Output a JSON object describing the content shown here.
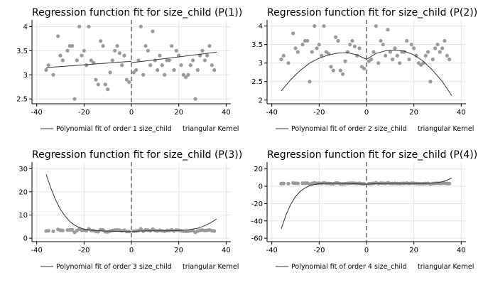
{
  "chart_data": [
    {
      "type": "scatter",
      "title": "Regression function fit for size_child (P(1))",
      "xticks": [
        -40,
        -20,
        0,
        20,
        40
      ],
      "yticks": [
        "2.5",
        "3",
        "3.5",
        "4"
      ],
      "xlim": [
        -42,
        42
      ],
      "ylim": [
        2.4,
        4.05
      ],
      "cutoff_x": 0,
      "legend": {
        "line_label": "Polynomial fit of order 1 size_child",
        "kernel_label": "triangular Kernel",
        "placement": "bottom"
      },
      "series": [
        {
          "type": "scatter",
          "x": [
            -36,
            -35,
            -33,
            -31,
            -30,
            -29,
            -27,
            -26,
            -25,
            -24,
            -23,
            -22,
            -21,
            -20,
            -19,
            -18,
            -17,
            -16,
            -15,
            -14,
            -13,
            -12,
            -11,
            -10,
            -9,
            -8,
            -7,
            -6,
            -5,
            -4,
            -3,
            -2,
            -1,
            1,
            2,
            3,
            4,
            5,
            6,
            7,
            8,
            9,
            10,
            11,
            12,
            13,
            14,
            15,
            16,
            17,
            18,
            19,
            20,
            21,
            22,
            23,
            24,
            25,
            26,
            27,
            28,
            29,
            30,
            31,
            32,
            33,
            34,
            35
          ],
          "y": [
            3.1,
            3.2,
            3.0,
            3.8,
            3.4,
            3.3,
            3.5,
            3.6,
            3.6,
            2.5,
            3.3,
            4.0,
            3.4,
            3.5,
            3.2,
            4.0,
            3.3,
            3.25,
            2.9,
            2.8,
            3.7,
            3.6,
            2.8,
            2.7,
            3.05,
            3.3,
            3.5,
            3.6,
            3.45,
            3.2,
            3.4,
            2.9,
            2.85,
            3.05,
            3.1,
            3.3,
            4.0,
            3.0,
            3.6,
            3.5,
            3.2,
            3.9,
            3.3,
            3.1,
            3.4,
            3.2,
            3.0,
            3.3,
            3.3,
            3.6,
            3.1,
            3.5,
            3.4,
            3.2,
            3.0,
            2.95,
            3.0,
            3.2,
            3.3,
            2.5,
            3.1,
            3.4,
            3.5,
            3.3,
            3.4,
            3.6,
            3.2,
            3.1
          ]
        },
        {
          "type": "line",
          "name": "Polynomial fit of order 1 size_child",
          "segments": [
            {
              "x": [
                -36,
                0
              ],
              "y": [
                3.15,
                3.28
              ]
            },
            {
              "x": [
                0,
                36
              ],
              "y": [
                3.25,
                3.47
              ]
            }
          ]
        }
      ]
    },
    {
      "type": "scatter",
      "title": "Regression function fit for size_child (P(2))",
      "xticks": [
        -40,
        -20,
        0,
        20,
        40
      ],
      "yticks": [
        "2",
        "2.5",
        "3",
        "3.5",
        "4"
      ],
      "xlim": [
        -42,
        42
      ],
      "ylim": [
        1.9,
        4.05
      ],
      "cutoff_x": 0,
      "legend": {
        "line_label": "Polynomial fit of order 2 size_child",
        "kernel_label": "triangular Kernel",
        "placement": "bottom"
      },
      "series": [
        {
          "type": "scatter",
          "x": [
            -36,
            -35,
            -33,
            -31,
            -30,
            -29,
            -27,
            -26,
            -25,
            -24,
            -23,
            -22,
            -21,
            -20,
            -19,
            -18,
            -17,
            -16,
            -15,
            -14,
            -13,
            -12,
            -11,
            -10,
            -9,
            -8,
            -7,
            -6,
            -5,
            -4,
            -3,
            -2,
            -1,
            1,
            2,
            3,
            4,
            5,
            6,
            7,
            8,
            9,
            10,
            11,
            12,
            13,
            14,
            15,
            16,
            17,
            18,
            19,
            20,
            21,
            22,
            23,
            24,
            25,
            26,
            27,
            28,
            29,
            30,
            31,
            32,
            33,
            34,
            35
          ],
          "y": [
            3.1,
            3.2,
            3.0,
            3.8,
            3.4,
            3.3,
            3.5,
            3.6,
            3.6,
            2.5,
            3.3,
            4.0,
            3.4,
            3.5,
            3.2,
            4.0,
            3.3,
            3.25,
            2.9,
            2.8,
            3.7,
            3.6,
            2.8,
            2.7,
            3.05,
            3.3,
            3.5,
            3.6,
            3.45,
            3.2,
            3.4,
            2.9,
            2.85,
            3.05,
            3.1,
            3.3,
            4.0,
            3.0,
            3.6,
            3.5,
            3.2,
            3.9,
            3.3,
            3.1,
            3.4,
            3.2,
            3.0,
            3.3,
            3.3,
            3.6,
            3.1,
            3.5,
            3.4,
            3.2,
            3.0,
            2.95,
            3.0,
            3.2,
            3.3,
            2.5,
            3.1,
            3.4,
            3.5,
            3.3,
            3.4,
            3.6,
            3.2,
            3.1
          ]
        },
        {
          "type": "line",
          "name": "Polynomial fit of order 2 size_child",
          "segments": [
            {
              "x": [
                -36,
                -32,
                -28,
                -24,
                -20,
                -16,
                -12,
                -8,
                -4,
                0
              ],
              "y": [
                2.25,
                2.55,
                2.8,
                3.0,
                3.13,
                3.22,
                3.27,
                3.28,
                3.22,
                3.1
              ]
            },
            {
              "x": [
                0,
                4,
                8,
                12,
                16,
                20,
                24,
                28,
                32,
                36
              ],
              "y": [
                3.1,
                3.26,
                3.33,
                3.35,
                3.32,
                3.22,
                3.05,
                2.8,
                2.5,
                2.12
              ]
            }
          ]
        }
      ]
    },
    {
      "type": "scatter",
      "title": "Regression function fit for size_child (P(3))",
      "xticks": [
        -40,
        -20,
        0,
        20,
        40
      ],
      "yticks": [
        "0",
        "10",
        "20",
        "30"
      ],
      "xlim": [
        -42,
        42
      ],
      "ylim": [
        -1.5,
        31
      ],
      "cutoff_x": 0,
      "legend": {
        "line_label": "Polynomial fit of order 3 size_child",
        "kernel_label": "triangular Kernel",
        "placement": "bottom"
      },
      "series": [
        {
          "type": "scatter",
          "x": [
            -36,
            -35,
            -33,
            -31,
            -30,
            -29,
            -27,
            -26,
            -25,
            -24,
            -23,
            -22,
            -21,
            -20,
            -19,
            -18,
            -17,
            -16,
            -15,
            -14,
            -13,
            -12,
            -11,
            -10,
            -9,
            -8,
            -7,
            -6,
            -5,
            -4,
            -3,
            -2,
            -1,
            1,
            2,
            3,
            4,
            5,
            6,
            7,
            8,
            9,
            10,
            11,
            12,
            13,
            14,
            15,
            16,
            17,
            18,
            19,
            20,
            21,
            22,
            23,
            24,
            25,
            26,
            27,
            28,
            29,
            30,
            31,
            32,
            33,
            34,
            35
          ],
          "y": [
            3.1,
            3.2,
            3.0,
            3.8,
            3.4,
            3.3,
            3.5,
            3.6,
            3.6,
            2.5,
            3.3,
            4.0,
            3.4,
            3.5,
            3.2,
            4.0,
            3.3,
            3.25,
            2.9,
            2.8,
            3.7,
            3.6,
            2.8,
            2.7,
            3.05,
            3.3,
            3.5,
            3.6,
            3.45,
            3.2,
            3.4,
            2.9,
            2.85,
            3.05,
            3.1,
            3.3,
            4.0,
            3.0,
            3.6,
            3.5,
            3.2,
            3.9,
            3.3,
            3.1,
            3.4,
            3.2,
            3.0,
            3.3,
            3.3,
            3.6,
            3.1,
            3.5,
            3.4,
            3.2,
            3.0,
            2.95,
            3.0,
            3.2,
            3.3,
            2.5,
            3.1,
            3.4,
            3.5,
            3.3,
            3.4,
            3.6,
            3.2,
            3.1
          ]
        },
        {
          "type": "line",
          "name": "Polynomial fit of order 3 size_child",
          "segments": [
            {
              "x": [
                -36,
                -34,
                -32,
                -30,
                -28,
                -26,
                -24,
                -22,
                -20,
                -16,
                -12,
                -8,
                -4,
                0
              ],
              "y": [
                27.5,
                21.5,
                16.5,
                12.5,
                9.5,
                7.2,
                5.6,
                4.6,
                3.9,
                3.3,
                3.1,
                3.0,
                2.9,
                2.8
              ]
            },
            {
              "x": [
                0,
                4,
                8,
                12,
                16,
                20,
                24,
                28,
                30,
                32,
                34,
                36
              ],
              "y": [
                2.8,
                3.1,
                3.2,
                3.2,
                3.2,
                3.3,
                3.6,
                4.3,
                5.0,
                5.9,
                7.0,
                8.3
              ]
            }
          ]
        }
      ]
    },
    {
      "type": "scatter",
      "title": "Regression function fit for size_child (P(4))",
      "xticks": [
        -40,
        -20,
        0,
        20,
        40
      ],
      "yticks": [
        "-60",
        "-40",
        "-20",
        "0",
        "20"
      ],
      "xlim": [
        -42,
        42
      ],
      "ylim": [
        -64,
        23
      ],
      "cutoff_x": 0,
      "legend": {
        "line_label": "Polynomial fit of order 4 size_child",
        "kernel_label": "triangular Kernel",
        "placement": "bottom"
      },
      "series": [
        {
          "type": "scatter",
          "x": [
            -36,
            -35,
            -33,
            -31,
            -30,
            -29,
            -27,
            -26,
            -25,
            -24,
            -23,
            -22,
            -21,
            -20,
            -19,
            -18,
            -17,
            -16,
            -15,
            -14,
            -13,
            -12,
            -11,
            -10,
            -9,
            -8,
            -7,
            -6,
            -5,
            -4,
            -3,
            -2,
            -1,
            1,
            2,
            3,
            4,
            5,
            6,
            7,
            8,
            9,
            10,
            11,
            12,
            13,
            14,
            15,
            16,
            17,
            18,
            19,
            20,
            21,
            22,
            23,
            24,
            25,
            26,
            27,
            28,
            29,
            30,
            31,
            32,
            33,
            34,
            35
          ],
          "y": [
            3.1,
            3.2,
            3.0,
            3.8,
            3.4,
            3.3,
            3.5,
            3.6,
            3.6,
            2.5,
            3.3,
            4.0,
            3.4,
            3.5,
            3.2,
            4.0,
            3.3,
            3.25,
            2.9,
            2.8,
            3.7,
            3.6,
            2.8,
            2.7,
            3.05,
            3.3,
            3.5,
            3.6,
            3.45,
            3.2,
            3.4,
            2.9,
            2.85,
            3.05,
            3.1,
            3.3,
            4.0,
            3.0,
            3.6,
            3.5,
            3.2,
            3.9,
            3.3,
            3.1,
            3.4,
            3.2,
            3.0,
            3.3,
            3.3,
            3.6,
            3.1,
            3.5,
            3.4,
            3.2,
            3.0,
            2.95,
            3.0,
            3.2,
            3.3,
            2.5,
            3.1,
            3.4,
            3.5,
            3.3,
            3.4,
            3.6,
            3.2,
            3.1
          ]
        },
        {
          "type": "line",
          "name": "Polynomial fit of order 4 size_child",
          "segments": [
            {
              "x": [
                -36,
                -34,
                -32,
                -30,
                -28,
                -26,
                -24,
                -22,
                -20,
                -16,
                -12,
                -8,
                -4,
                0
              ],
              "y": [
                -49,
                -33,
                -21,
                -12,
                -6,
                -2,
                0.5,
                2,
                3,
                3.5,
                3.4,
                3.2,
                2.8,
                2.3
              ]
            },
            {
              "x": [
                0,
                4,
                8,
                12,
                16,
                20,
                24,
                28,
                30,
                32,
                34,
                36
              ],
              "y": [
                2.3,
                3.0,
                3.3,
                3.4,
                3.3,
                3.2,
                3.2,
                3.6,
                4.2,
                5.3,
                7.0,
                9.5
              ]
            }
          ]
        }
      ]
    }
  ]
}
